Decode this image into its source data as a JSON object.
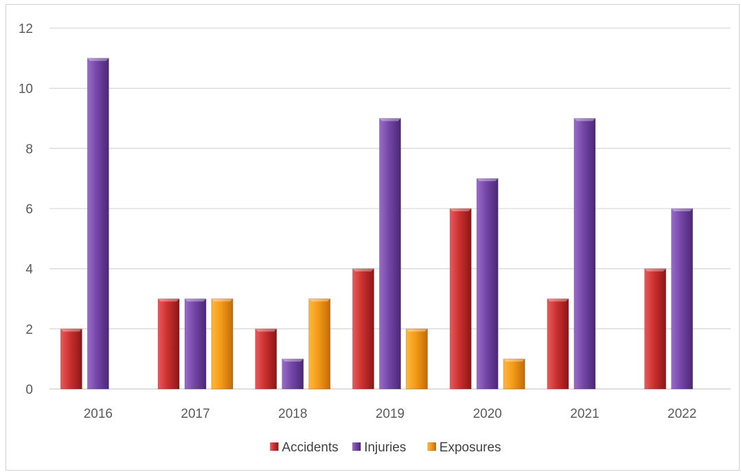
{
  "chart_data": {
    "type": "bar",
    "title": "",
    "xlabel": "",
    "ylabel": "",
    "categories": [
      "2016",
      "2017",
      "2018",
      "2019",
      "2020",
      "2021",
      "2022"
    ],
    "series": [
      {
        "name": "Accidents",
        "color": "#c0282c",
        "values": [
          2,
          3,
          2,
          4,
          6,
          3,
          4
        ]
      },
      {
        "name": "Injuries",
        "color": "#6d3f9e",
        "values": [
          11,
          3,
          1,
          9,
          7,
          9,
          6
        ]
      },
      {
        "name": "Exposures",
        "color": "#ec8f12",
        "values": [
          0,
          3,
          3,
          2,
          1,
          0,
          0
        ]
      }
    ],
    "ylim": [
      0,
      12
    ],
    "yticks": [
      0,
      2,
      4,
      6,
      8,
      10,
      12
    ],
    "grid": true,
    "legend": "bottom"
  }
}
